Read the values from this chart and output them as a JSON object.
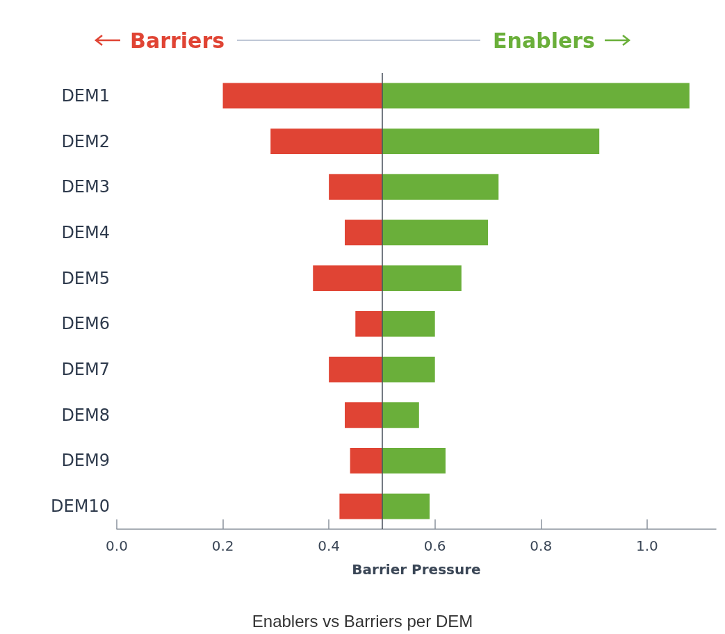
{
  "chart_data": {
    "type": "bar",
    "orientation": "horizontal",
    "title": "Enablers vs Barriers per DEM",
    "xlabel": "Barrier Pressure",
    "categories": [
      "DEM1",
      "DEM2",
      "DEM3",
      "DEM4",
      "DEM5",
      "DEM6",
      "DEM7",
      "DEM8",
      "DEM9",
      "DEM10"
    ],
    "series": [
      {
        "name": "Barriers",
        "color": "#e04434",
        "base": [
          0.2,
          0.29,
          0.4,
          0.43,
          0.37,
          0.45,
          0.4,
          0.43,
          0.44,
          0.42
        ],
        "values": [
          0.3,
          0.21,
          0.1,
          0.07,
          0.13,
          0.05,
          0.1,
          0.07,
          0.06,
          0.08
        ]
      },
      {
        "name": "Enablers",
        "color": "#6aaf3a",
        "base": [
          0.5,
          0.5,
          0.5,
          0.5,
          0.5,
          0.5,
          0.5,
          0.5,
          0.5,
          0.5
        ],
        "values": [
          0.58,
          0.41,
          0.22,
          0.2,
          0.15,
          0.1,
          0.1,
          0.07,
          0.12,
          0.09
        ]
      }
    ],
    "xlim": [
      0,
      1.13
    ],
    "xticks": [
      {
        "value": 0,
        "label": "0.0"
      },
      {
        "value": 0.2,
        "label": "0.2"
      },
      {
        "value": 0.4,
        "label": "0.4"
      },
      {
        "value": 0.6,
        "label": "0.6"
      },
      {
        "value": 0.8,
        "label": "0.8"
      },
      {
        "value": 1,
        "label": "1.0"
      }
    ],
    "ref_lines": [
      {
        "axis": "x",
        "value": 0.5,
        "label": null,
        "color": "#444c58"
      }
    ],
    "grid": false,
    "legend": "top"
  }
}
